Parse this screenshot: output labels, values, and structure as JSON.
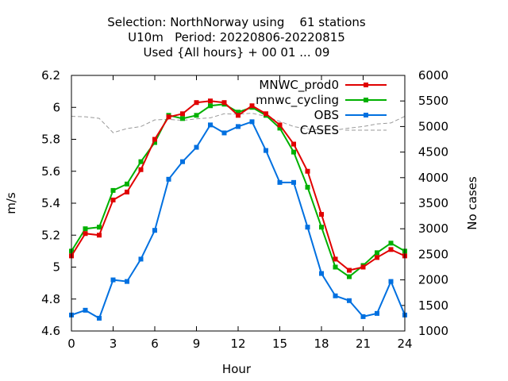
{
  "chart_data": {
    "type": "line",
    "title_lines": [
      "Selection: NorthNorway using    61 stations",
      "U10m   Period: 20220806-20220815",
      "Used {All hours} + 00 01 ... 09"
    ],
    "xlabel": "Hour",
    "ylabel": "m/s",
    "y2label": "No cases",
    "xlim": [
      0,
      24
    ],
    "ylim": [
      4.6,
      6.2
    ],
    "y2lim": [
      1000,
      6000
    ],
    "xticks": [
      0,
      3,
      6,
      9,
      12,
      15,
      18,
      21,
      24
    ],
    "yticks": [
      4.6,
      4.8,
      5,
      5.2,
      5.4,
      5.6,
      5.8,
      6,
      6.2
    ],
    "ytick_labels": [
      "4.6",
      "4.8",
      "5",
      "5.2",
      "5.4",
      "5.6",
      "5.8",
      "6",
      "6.2"
    ],
    "y2ticks": [
      1000,
      1500,
      2000,
      2500,
      3000,
      3500,
      4000,
      4500,
      5000,
      5500,
      6000
    ],
    "grid": false,
    "legend_position": "top-right",
    "x": [
      0,
      1,
      2,
      3,
      4,
      5,
      6,
      7,
      8,
      9,
      10,
      11,
      12,
      13,
      14,
      15,
      16,
      17,
      18,
      19,
      20,
      21,
      22,
      23,
      24
    ],
    "series": [
      {
        "name": "MNWC_prod0",
        "color": "#e00000",
        "axis": "left",
        "values": [
          5.07,
          5.21,
          5.2,
          5.42,
          5.47,
          5.61,
          5.8,
          5.94,
          5.96,
          6.03,
          6.04,
          6.03,
          5.95,
          6.01,
          5.96,
          5.89,
          5.77,
          5.6,
          5.33,
          5.05,
          4.98,
          5.0,
          5.06,
          5.11,
          5.07
        ]
      },
      {
        "name": "mnwc_cycling",
        "color": "#00b000",
        "axis": "left",
        "values": [
          5.1,
          5.24,
          5.25,
          5.48,
          5.52,
          5.66,
          5.78,
          5.95,
          5.93,
          5.95,
          6.01,
          6.02,
          5.97,
          6.0,
          5.95,
          5.87,
          5.72,
          5.5,
          5.25,
          5.0,
          4.94,
          5.01,
          5.09,
          5.15,
          5.1
        ]
      },
      {
        "name": "OBS",
        "color": "#0070e0",
        "axis": "left",
        "values": [
          4.7,
          4.73,
          4.68,
          4.92,
          4.91,
          5.05,
          5.23,
          5.55,
          5.66,
          5.75,
          5.89,
          5.84,
          5.88,
          5.91,
          5.73,
          5.53,
          5.53,
          5.25,
          4.96,
          4.82,
          4.79,
          4.69,
          4.71,
          4.91,
          4.7
        ]
      },
      {
        "name": "CASES",
        "color": "#999999",
        "axis": "right",
        "values": [
          5200,
          5190,
          5160,
          4880,
          4960,
          5000,
          5130,
          5140,
          5120,
          5150,
          5170,
          5250,
          5240,
          5260,
          5200,
          5100,
          5000,
          4950,
          4930,
          4930,
          4970,
          5000,
          5050,
          5070,
          5200
        ]
      }
    ]
  }
}
